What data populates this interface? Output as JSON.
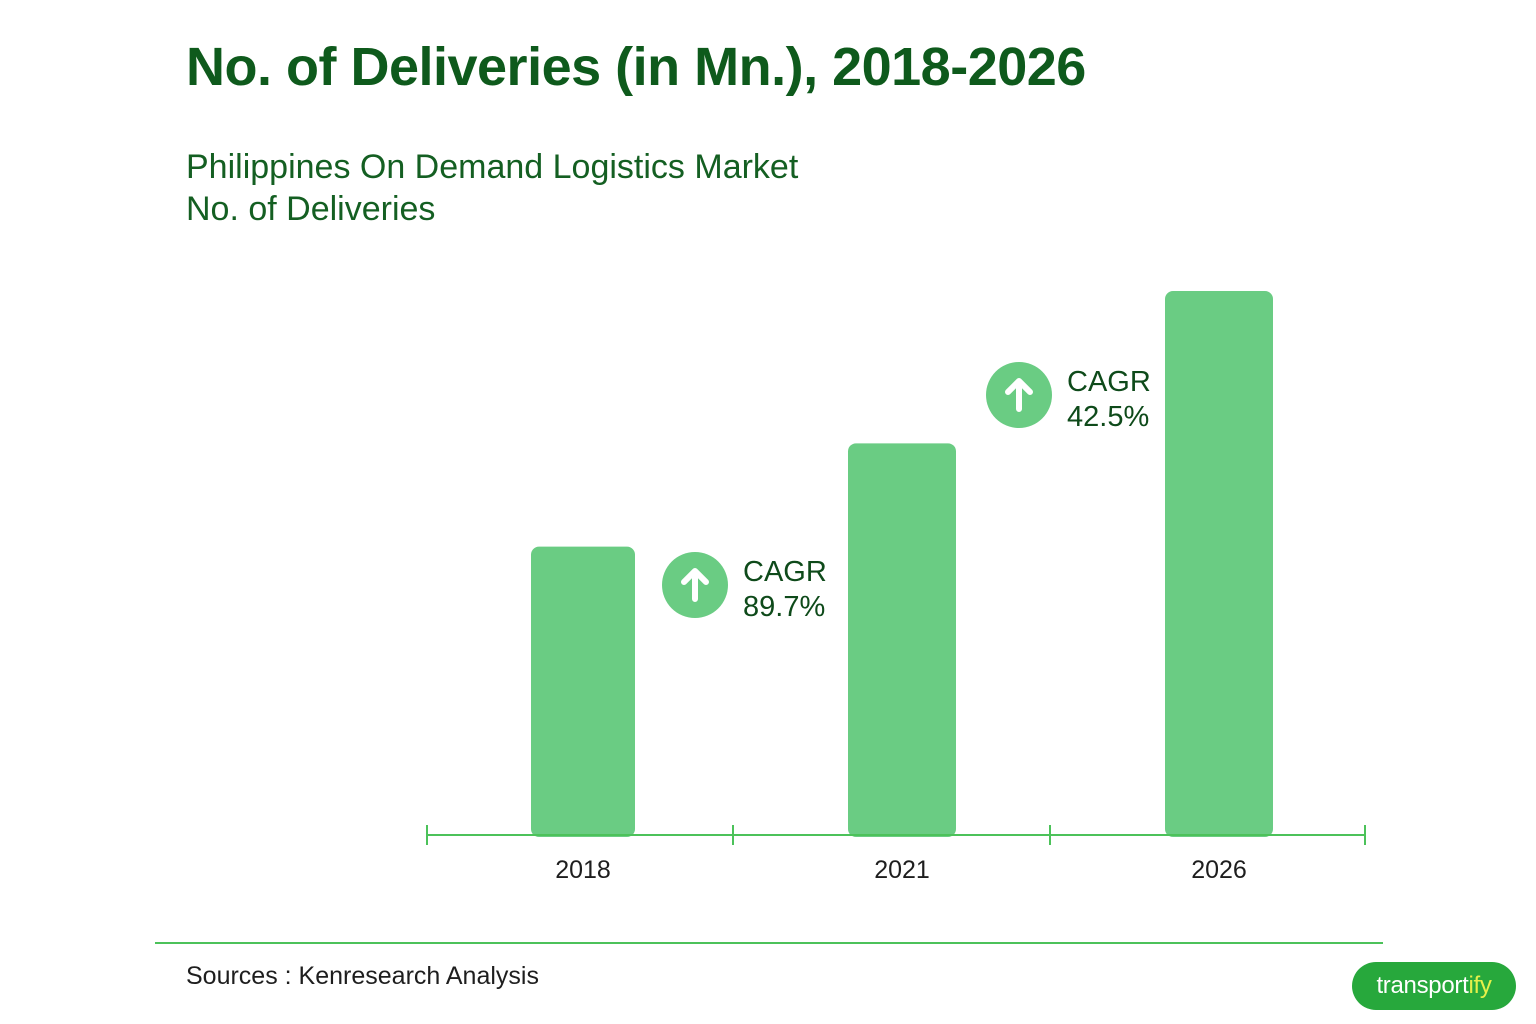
{
  "title": "No. of Deliveries (in Mn.), 2018-2026",
  "subtitle_line1": "Philippines On Demand Logistics Market",
  "subtitle_line2": "No. of Deliveries",
  "source": "Sources : Kenresearch Analysis",
  "logo": {
    "text": "transport",
    "accent": "ify"
  },
  "colors": {
    "bar": "#6acc83",
    "axis": "#4cc25a",
    "title": "#0e5a1c",
    "badge": "#6acc83",
    "badge_arrow": "#ffffff",
    "cagr_text": "#0e4a1a"
  },
  "icons": {
    "cagr_badge": "arrow-up-icon"
  },
  "chart_data": {
    "type": "bar",
    "title": "No. of Deliveries (in Mn.), 2018-2026",
    "xlabel": "",
    "ylabel": "",
    "categories": [
      "2018",
      "2021",
      "2026"
    ],
    "values": [
      53,
      72,
      100
    ],
    "ylim": [
      0,
      100
    ],
    "grid": false,
    "value_labels_shown": false,
    "annotations": [
      {
        "label": "CAGR",
        "value": "89.7%",
        "between": [
          "2018",
          "2021"
        ]
      },
      {
        "label": "CAGR",
        "value": "42.5%",
        "between": [
          "2021",
          "2026"
        ]
      }
    ]
  }
}
